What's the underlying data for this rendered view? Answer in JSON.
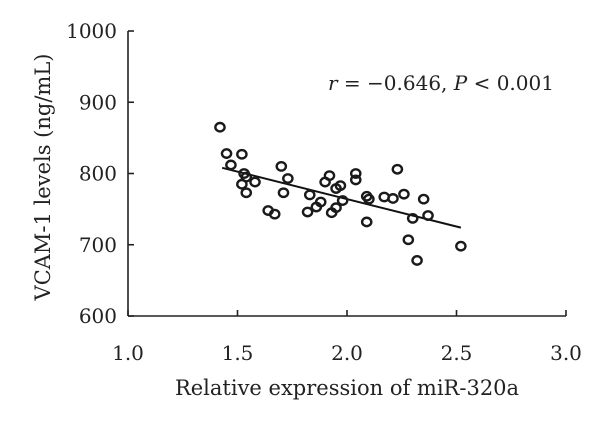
{
  "chart_data": {
    "type": "scatter",
    "xlabel": "Relative expression of miR-320a",
    "ylabel": "VCAM-1 levels (ng/mL)",
    "xlim": [
      1.0,
      3.0
    ],
    "ylim": [
      600,
      1000
    ],
    "xticks": [
      "1.0",
      "1.5",
      "2.0",
      "2.5",
      "3.0"
    ],
    "yticks": [
      "600",
      "700",
      "800",
      "900",
      "1000"
    ],
    "grid": false,
    "annotation": {
      "r_label": "r",
      "r_value": " = −0.646, ",
      "p_label": "P",
      "p_value": " < 0.001"
    },
    "trendline": {
      "x": [
        1.43,
        2.52
      ],
      "y": [
        808,
        724
      ]
    },
    "points": {
      "x": [
        1.42,
        1.45,
        1.47,
        1.52,
        1.52,
        1.53,
        1.54,
        1.54,
        1.58,
        1.64,
        1.67,
        1.7,
        1.71,
        1.73,
        1.82,
        1.83,
        1.86,
        1.88,
        1.9,
        1.92,
        1.93,
        1.95,
        1.95,
        1.97,
        1.98,
        2.04,
        2.04,
        2.09,
        2.09,
        2.1,
        2.17,
        2.21,
        2.23,
        2.26,
        2.28,
        2.3,
        2.32,
        2.35,
        2.37,
        2.52
      ],
      "y": [
        865,
        828,
        812,
        827,
        785,
        800,
        795,
        773,
        788,
        748,
        743,
        810,
        773,
        793,
        746,
        770,
        753,
        760,
        788,
        797,
        745,
        752,
        779,
        783,
        762,
        800,
        791,
        768,
        732,
        764,
        767,
        765,
        806,
        771,
        707,
        737,
        678,
        764,
        741,
        698
      ]
    }
  }
}
